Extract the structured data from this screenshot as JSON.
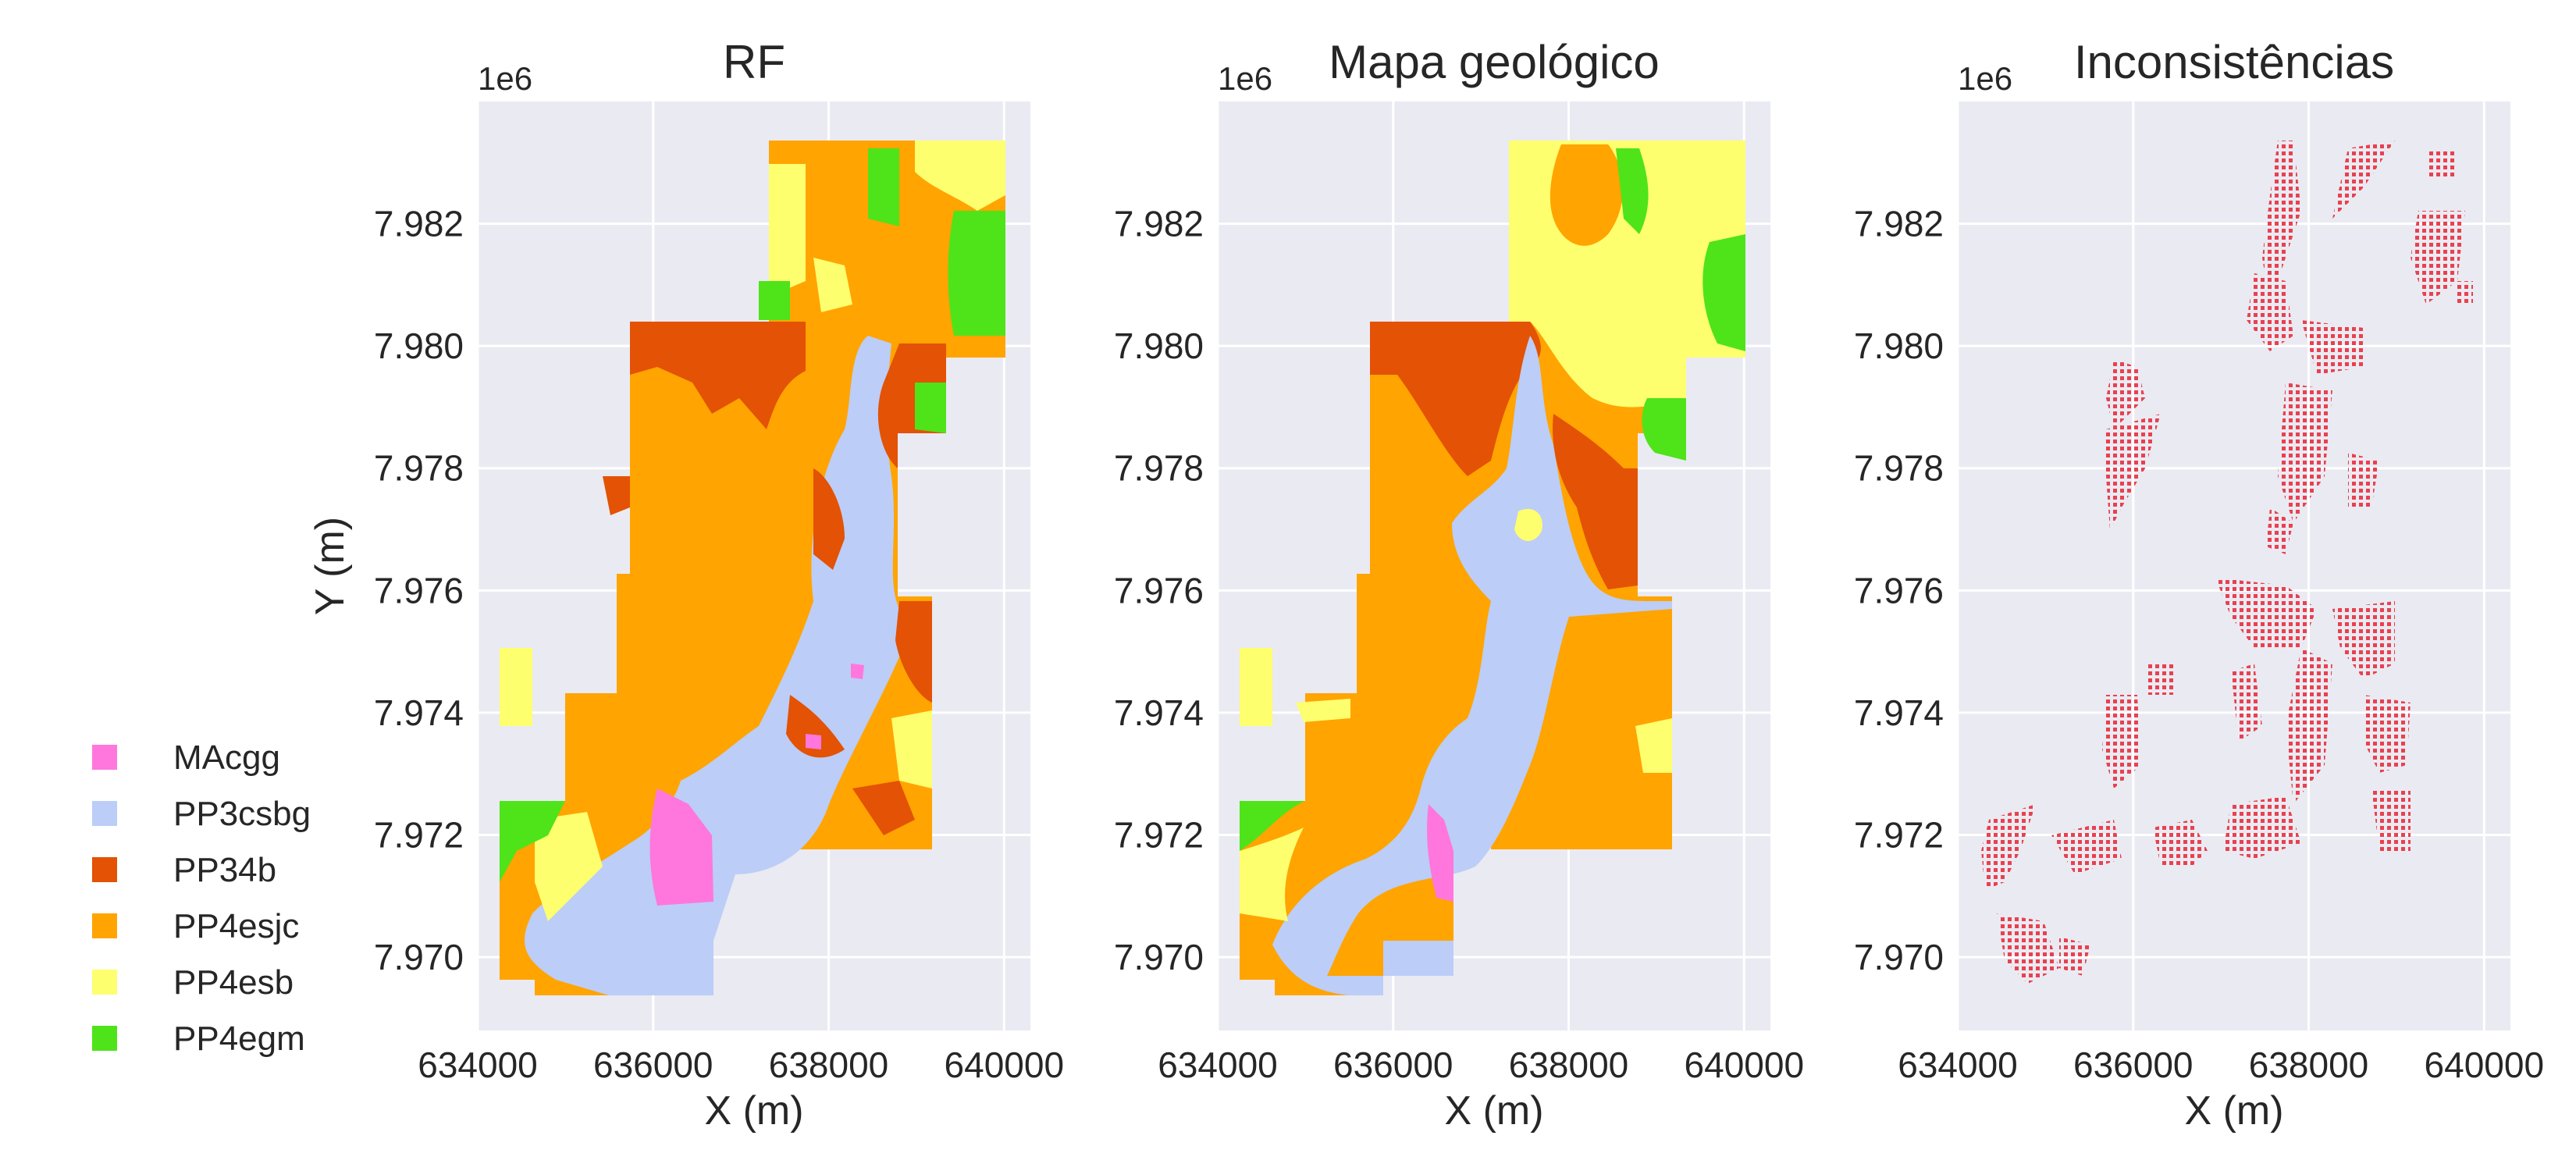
{
  "chart_data": [
    {
      "type": "map",
      "title": "RF",
      "xlabel": "X (m)",
      "ylabel": "Y (m)",
      "y_offset_label": "1e6",
      "xlim": [
        634000,
        640300
      ],
      "ylim": [
        7.9688,
        7.984
      ],
      "xticks": [
        634000,
        636000,
        638000,
        640000
      ],
      "xtick_labels": [
        "634000",
        "636000",
        "638000",
        "640000"
      ],
      "yticks": [
        7.97,
        7.972,
        7.974,
        7.976,
        7.978,
        7.98,
        7.982
      ],
      "ytick_labels": [
        "7.970",
        "7.972",
        "7.974",
        "7.976",
        "7.978",
        "7.980",
        "7.982"
      ],
      "grid": true,
      "classes_shown": [
        "PP4esjc",
        "PP3csbg",
        "PP34b",
        "PP4esb",
        "PP4egm",
        "MAcgg"
      ]
    },
    {
      "type": "map",
      "title": "Mapa geológico",
      "xlabel": "X (m)",
      "ylabel": "",
      "y_offset_label": "1e6",
      "xlim": [
        634000,
        640300
      ],
      "ylim": [
        7.9688,
        7.984
      ],
      "xticks": [
        634000,
        636000,
        638000,
        640000
      ],
      "xtick_labels": [
        "634000",
        "636000",
        "638000",
        "640000"
      ],
      "yticks": [
        7.97,
        7.972,
        7.974,
        7.976,
        7.978,
        7.98,
        7.982
      ],
      "ytick_labels": [
        "7.970",
        "7.972",
        "7.974",
        "7.976",
        "7.978",
        "7.980",
        "7.982"
      ],
      "grid": true,
      "classes_shown": [
        "PP4esjc",
        "PP3csbg",
        "PP34b",
        "PP4esb",
        "PP4egm",
        "MAcgg"
      ]
    },
    {
      "type": "scatter",
      "title": "Inconsistências",
      "xlabel": "X (m)",
      "ylabel": "",
      "y_offset_label": "1e6",
      "xlim": [
        634000,
        640300
      ],
      "ylim": [
        7.9688,
        7.984
      ],
      "xticks": [
        634000,
        636000,
        638000,
        640000
      ],
      "xtick_labels": [
        "634000",
        "636000",
        "638000",
        "640000"
      ],
      "yticks": [
        7.97,
        7.972,
        7.974,
        7.976,
        7.978,
        7.98,
        7.982
      ],
      "ytick_labels": [
        "7.970",
        "7.972",
        "7.974",
        "7.976",
        "7.978",
        "7.980",
        "7.982"
      ],
      "grid": true,
      "marker_color": "#e8414f"
    }
  ],
  "legend": {
    "placement": "left",
    "items": [
      {
        "label": "MAcgg",
        "color": "#ff77dd"
      },
      {
        "label": "PP3csbg",
        "color": "#bccdf7"
      },
      {
        "label": "PP34b",
        "color": "#e35205"
      },
      {
        "label": "PP4esjc",
        "color": "#ffa400"
      },
      {
        "label": "PP4esb",
        "color": "#feff6e"
      },
      {
        "label": "PP4egm",
        "color": "#4fe31a"
      }
    ]
  },
  "colors": {
    "axes_background": "#eaeaf2",
    "grid": "#ffffff",
    "inconsistency": "#e8414f"
  }
}
